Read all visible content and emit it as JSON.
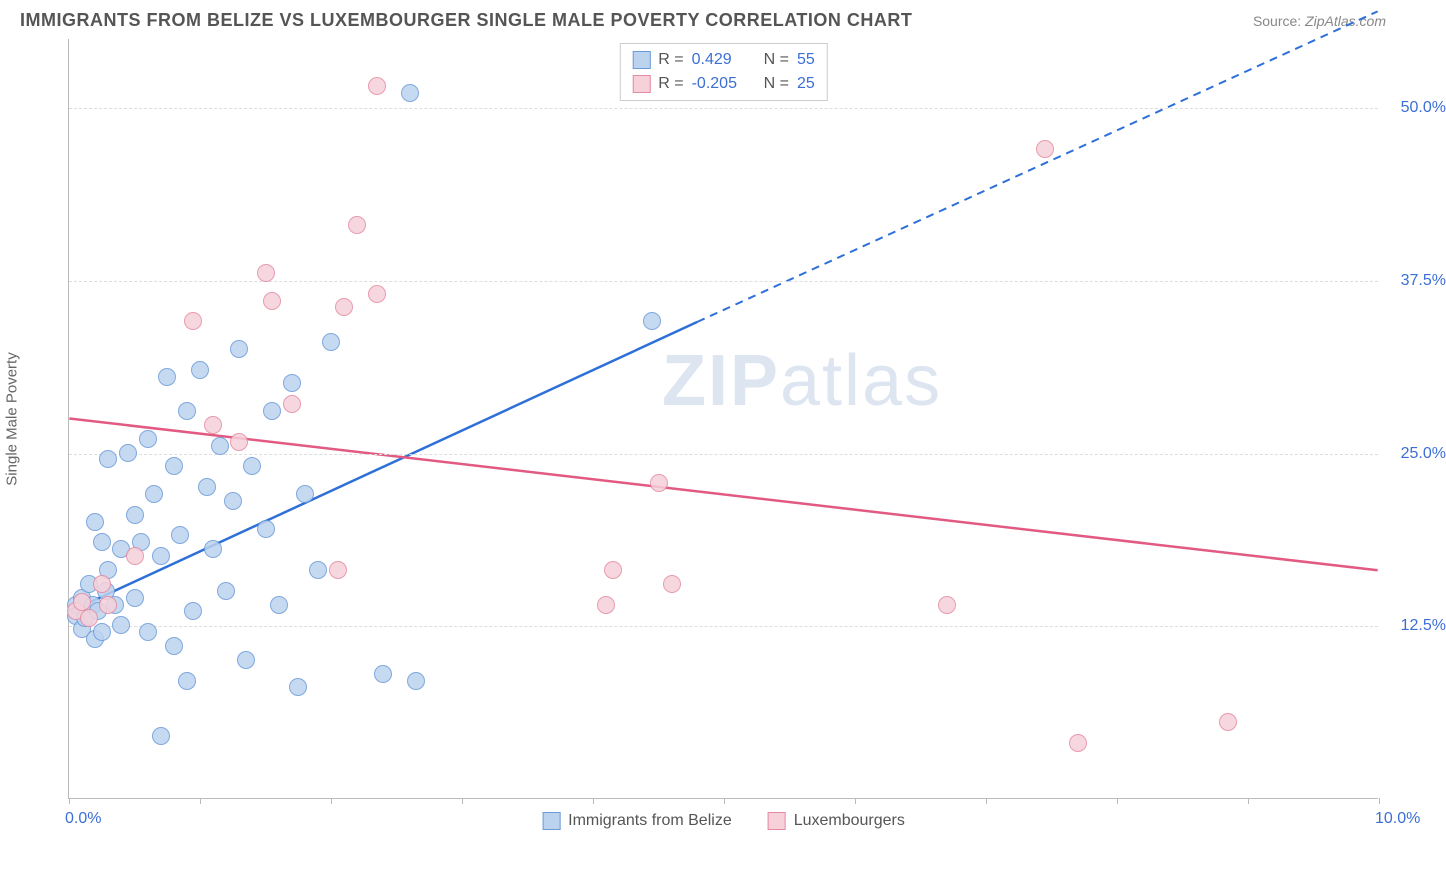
{
  "header": {
    "title": "IMMIGRANTS FROM BELIZE VS LUXEMBOURGER SINGLE MALE POVERTY CORRELATION CHART",
    "source_label": "Source:",
    "source_value": "ZipAtlas.com"
  },
  "chart": {
    "type": "scatter",
    "y_axis_title": "Single Male Poverty",
    "watermark_a": "ZIP",
    "watermark_b": "atlas",
    "background_color": "#ffffff",
    "grid_color": "#dddddd",
    "axis_color": "#bbbbbb",
    "label_color": "#3b6fd6",
    "xlim": [
      0,
      10
    ],
    "ylim": [
      0,
      55
    ],
    "x_tick_positions": [
      0,
      1,
      2,
      3,
      4,
      5,
      6,
      7,
      8,
      9,
      10
    ],
    "x_tick_labels": {
      "0": "0.0%",
      "10": "10.0%"
    },
    "y_grid": [
      12.5,
      25.0,
      37.5,
      50.0
    ],
    "y_tick_labels": [
      "12.5%",
      "25.0%",
      "37.5%",
      "50.0%"
    ],
    "marker_radius": 9,
    "series": [
      {
        "key": "belize",
        "label": "Immigrants from Belize",
        "fill": "#bcd3ef",
        "stroke": "#6a9ad8",
        "line_color": "#2e6fd8",
        "r_value": "0.429",
        "n_value": "55",
        "trend": {
          "x1": 0.0,
          "y1": 13.5,
          "x2_solid": 4.8,
          "y2_solid": 34.5,
          "x2_dash": 10.0,
          "y2_dash": 57.0
        },
        "points": [
          [
            0.05,
            14.0
          ],
          [
            0.05,
            13.2
          ],
          [
            0.1,
            14.5
          ],
          [
            0.1,
            12.2
          ],
          [
            0.12,
            13.0
          ],
          [
            0.15,
            15.5
          ],
          [
            0.18,
            14.0
          ],
          [
            0.2,
            20.0
          ],
          [
            0.2,
            11.5
          ],
          [
            0.22,
            13.5
          ],
          [
            0.25,
            18.5
          ],
          [
            0.25,
            12.0
          ],
          [
            0.28,
            15.0
          ],
          [
            0.3,
            16.5
          ],
          [
            0.3,
            24.5
          ],
          [
            0.35,
            14.0
          ],
          [
            0.4,
            18.0
          ],
          [
            0.4,
            12.5
          ],
          [
            0.45,
            25.0
          ],
          [
            0.5,
            20.5
          ],
          [
            0.5,
            14.5
          ],
          [
            0.55,
            18.5
          ],
          [
            0.6,
            26.0
          ],
          [
            0.6,
            12.0
          ],
          [
            0.65,
            22.0
          ],
          [
            0.7,
            17.5
          ],
          [
            0.75,
            30.5
          ],
          [
            0.8,
            24.0
          ],
          [
            0.8,
            11.0
          ],
          [
            0.85,
            19.0
          ],
          [
            0.9,
            28.0
          ],
          [
            0.9,
            8.5
          ],
          [
            0.95,
            13.5
          ],
          [
            1.0,
            31.0
          ],
          [
            1.05,
            22.5
          ],
          [
            1.1,
            18.0
          ],
          [
            1.15,
            25.5
          ],
          [
            1.2,
            15.0
          ],
          [
            1.25,
            21.5
          ],
          [
            1.3,
            32.5
          ],
          [
            1.35,
            10.0
          ],
          [
            1.4,
            24.0
          ],
          [
            1.5,
            19.5
          ],
          [
            1.55,
            28.0
          ],
          [
            1.6,
            14.0
          ],
          [
            1.7,
            30.0
          ],
          [
            1.75,
            8.0
          ],
          [
            1.8,
            22.0
          ],
          [
            1.9,
            16.5
          ],
          [
            2.0,
            33.0
          ],
          [
            2.4,
            9.0
          ],
          [
            2.6,
            51.0
          ],
          [
            2.65,
            8.5
          ],
          [
            4.45,
            34.5
          ],
          [
            0.7,
            4.5
          ]
        ]
      },
      {
        "key": "lux",
        "label": "Luxembourgers",
        "fill": "#f6d1da",
        "stroke": "#e58aa0",
        "line_color": "#e25a82",
        "r_value": "-0.205",
        "n_value": "25",
        "trend": {
          "x1": 0.0,
          "y1": 27.5,
          "x2_solid": 10.0,
          "y2_solid": 16.5,
          "x2_dash": 10.0,
          "y2_dash": 16.5
        },
        "points": [
          [
            0.05,
            13.5
          ],
          [
            0.1,
            14.2
          ],
          [
            0.15,
            13.0
          ],
          [
            0.25,
            15.5
          ],
          [
            0.3,
            14.0
          ],
          [
            0.5,
            17.5
          ],
          [
            0.95,
            34.5
          ],
          [
            1.1,
            27.0
          ],
          [
            1.3,
            25.8
          ],
          [
            1.5,
            38.0
          ],
          [
            1.55,
            36.0
          ],
          [
            1.7,
            28.5
          ],
          [
            2.05,
            16.5
          ],
          [
            2.1,
            35.5
          ],
          [
            2.2,
            41.5
          ],
          [
            2.35,
            36.5
          ],
          [
            2.35,
            51.5
          ],
          [
            4.1,
            14.0
          ],
          [
            4.15,
            16.5
          ],
          [
            4.5,
            22.8
          ],
          [
            4.6,
            15.5
          ],
          [
            6.7,
            14.0
          ],
          [
            7.45,
            47.0
          ],
          [
            7.7,
            4.0
          ],
          [
            8.85,
            5.5
          ]
        ]
      }
    ],
    "legend_top": {
      "r_label": "R =",
      "n_label": "N ="
    }
  }
}
